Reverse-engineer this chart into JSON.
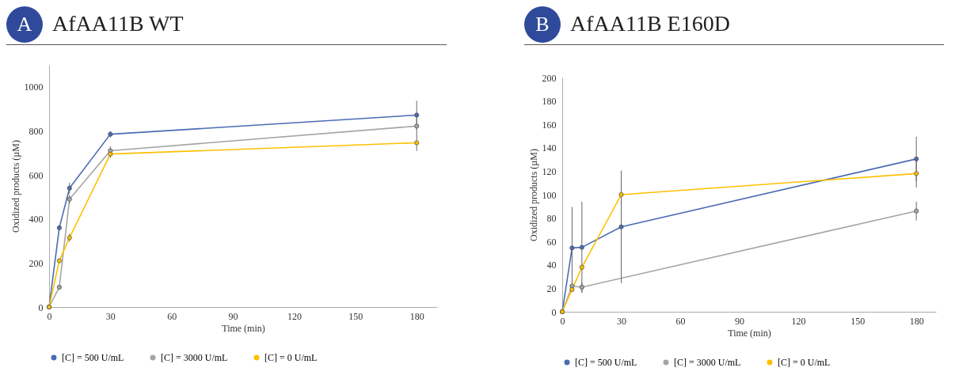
{
  "chart_data": [
    {
      "type": "line",
      "title": "AfAA11B WT",
      "annotations": [
        "A"
      ],
      "xlabel": "Time (min)",
      "ylabel": "Oxidized products (µM)",
      "x": [
        0,
        5,
        10,
        30,
        180
      ],
      "xlim": [
        0,
        190
      ],
      "xticks": [
        0,
        30,
        60,
        90,
        120,
        150,
        180
      ],
      "ylim": [
        0,
        1100
      ],
      "yticks": [
        0,
        200,
        400,
        600,
        800,
        1000
      ],
      "grid": false,
      "legend": "bottom",
      "marker": "circle",
      "series": [
        {
          "name": "[C] = 500 U/mL",
          "color": "#4a6bb5",
          "values": [
            0,
            360,
            540,
            785,
            872
          ],
          "errors": [
            null,
            10,
            25,
            15,
            65
          ]
        },
        {
          "name": "[C] = 3000 U/mL",
          "color": "#a5a5a5",
          "values": [
            0,
            90,
            490,
            710,
            822
          ],
          "errors": [
            null,
            8,
            20,
            20,
            40
          ]
        },
        {
          "name": "[C] = 0 U/mL",
          "color": "#ffc000",
          "values": [
            0,
            210,
            315,
            695,
            746
          ],
          "errors": [
            null,
            8,
            18,
            18,
            37
          ]
        }
      ]
    },
    {
      "type": "line",
      "title": "AfAA11B E160D",
      "annotations": [
        "B"
      ],
      "xlabel": "Time (min)",
      "ylabel": "Oxidized products (µM)",
      "x": [
        0,
        5,
        10,
        30,
        180
      ],
      "xlim": [
        0,
        190
      ],
      "xticks": [
        0,
        30,
        60,
        90,
        120,
        150,
        180
      ],
      "ylim": [
        0,
        200
      ],
      "yticks": [
        0,
        20,
        40,
        60,
        80,
        100,
        120,
        140,
        160,
        180,
        200
      ],
      "grid": false,
      "legend": "bottom",
      "marker": "circle",
      "series": [
        {
          "name": "[C] = 500 U/mL",
          "color": "#4a6bb5",
          "values": [
            0,
            54.5,
            55,
            72.5,
            130.5
          ],
          "errors": [
            null,
            35,
            39,
            48,
            19
          ]
        },
        {
          "name": "[C] = 3000 U/mL",
          "color": "#a5a5a5",
          "x": [
            0,
            5,
            10,
            180
          ],
          "values": [
            0,
            22,
            21,
            86
          ],
          "errors": [
            null,
            2,
            4,
            8
          ]
        },
        {
          "name": "[C] = 0 U/mL",
          "color": "#ffc000",
          "values": [
            0,
            19,
            38,
            100,
            118
          ],
          "errors": [
            null,
            2,
            2,
            10,
            12
          ]
        }
      ]
    }
  ]
}
